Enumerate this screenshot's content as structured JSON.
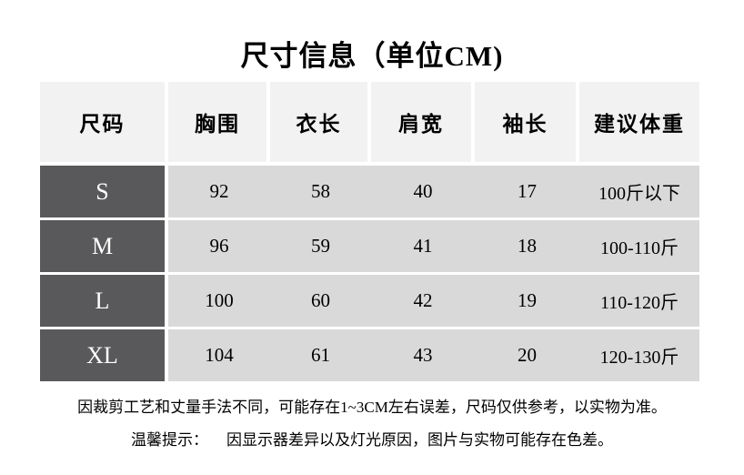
{
  "title": "尺寸信息（单位CM)",
  "table": {
    "headers": [
      "尺码",
      "胸围",
      "衣长",
      "肩宽",
      "袖长",
      "建议体重"
    ],
    "rows": [
      {
        "size": "S",
        "values": [
          "92",
          "58",
          "40",
          "17",
          "100斤以下"
        ]
      },
      {
        "size": "M",
        "values": [
          "96",
          "59",
          "41",
          "18",
          "100-110斤"
        ]
      },
      {
        "size": "L",
        "values": [
          "100",
          "60",
          "42",
          "19",
          "110-120斤"
        ]
      },
      {
        "size": "XL",
        "values": [
          "104",
          "61",
          "43",
          "20",
          "120-130斤"
        ]
      }
    ]
  },
  "notes": {
    "line1": "因裁剪工艺和丈量手法不同，可能存在1~3CM左右误差，尺码仅供参考，以实物为准。",
    "line2_label": "温馨提示：",
    "line2_text": "因显示器差异以及灯光原因，图片与实物可能存在色差。"
  },
  "colors": {
    "header_bg": "#f2f2f2",
    "body_bg": "#d9d9d9",
    "size_col_bg": "#59595b",
    "size_text": "#ffffff",
    "text": "#000000"
  }
}
